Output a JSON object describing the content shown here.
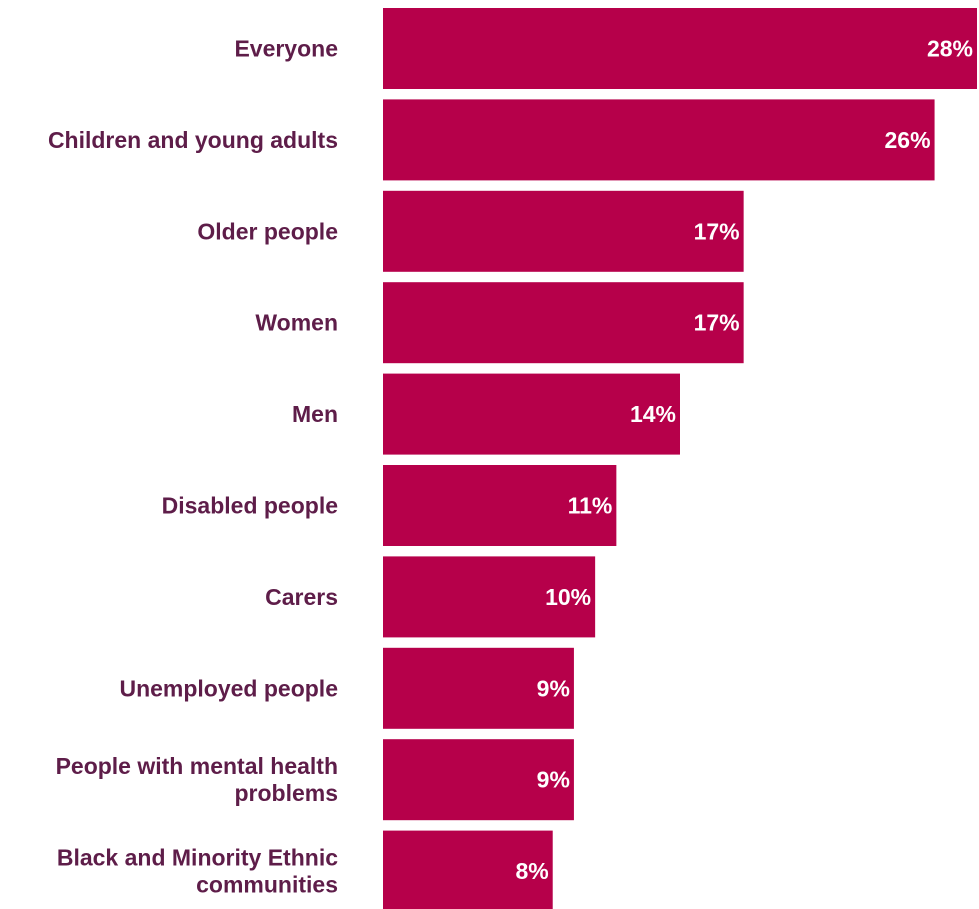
{
  "chart_data": {
    "type": "bar",
    "orientation": "horizontal",
    "title": "",
    "xlabel": "",
    "ylabel": "",
    "xlim": [
      0,
      28
    ],
    "grid": false,
    "legend": "none",
    "bar_color": "#b6004a",
    "label_color": "#5e1d49",
    "value_label_color": "#ffffff",
    "categories": [
      "Everyone",
      "Children and young adults",
      "Older people",
      "Women",
      "Men",
      "Disabled people",
      "Carers",
      "Unemployed people",
      "People with mental health problems",
      "Black and Minority Ethnic communities"
    ],
    "category_lines": [
      [
        "Everyone"
      ],
      [
        "Children and young adults"
      ],
      [
        "Older people"
      ],
      [
        "Women"
      ],
      [
        "Men"
      ],
      [
        "Disabled people"
      ],
      [
        "Carers"
      ],
      [
        "Unemployed people"
      ],
      [
        "People with mental health",
        "problems"
      ],
      [
        "Black and Minority Ethnic",
        "communities"
      ]
    ],
    "values": [
      28,
      26,
      17,
      17,
      14,
      11,
      10,
      9,
      9,
      8
    ],
    "value_labels": [
      "28%",
      "26%",
      "17%",
      "17%",
      "14%",
      "11%",
      "10%",
      "9%",
      "9%",
      "8%"
    ]
  }
}
